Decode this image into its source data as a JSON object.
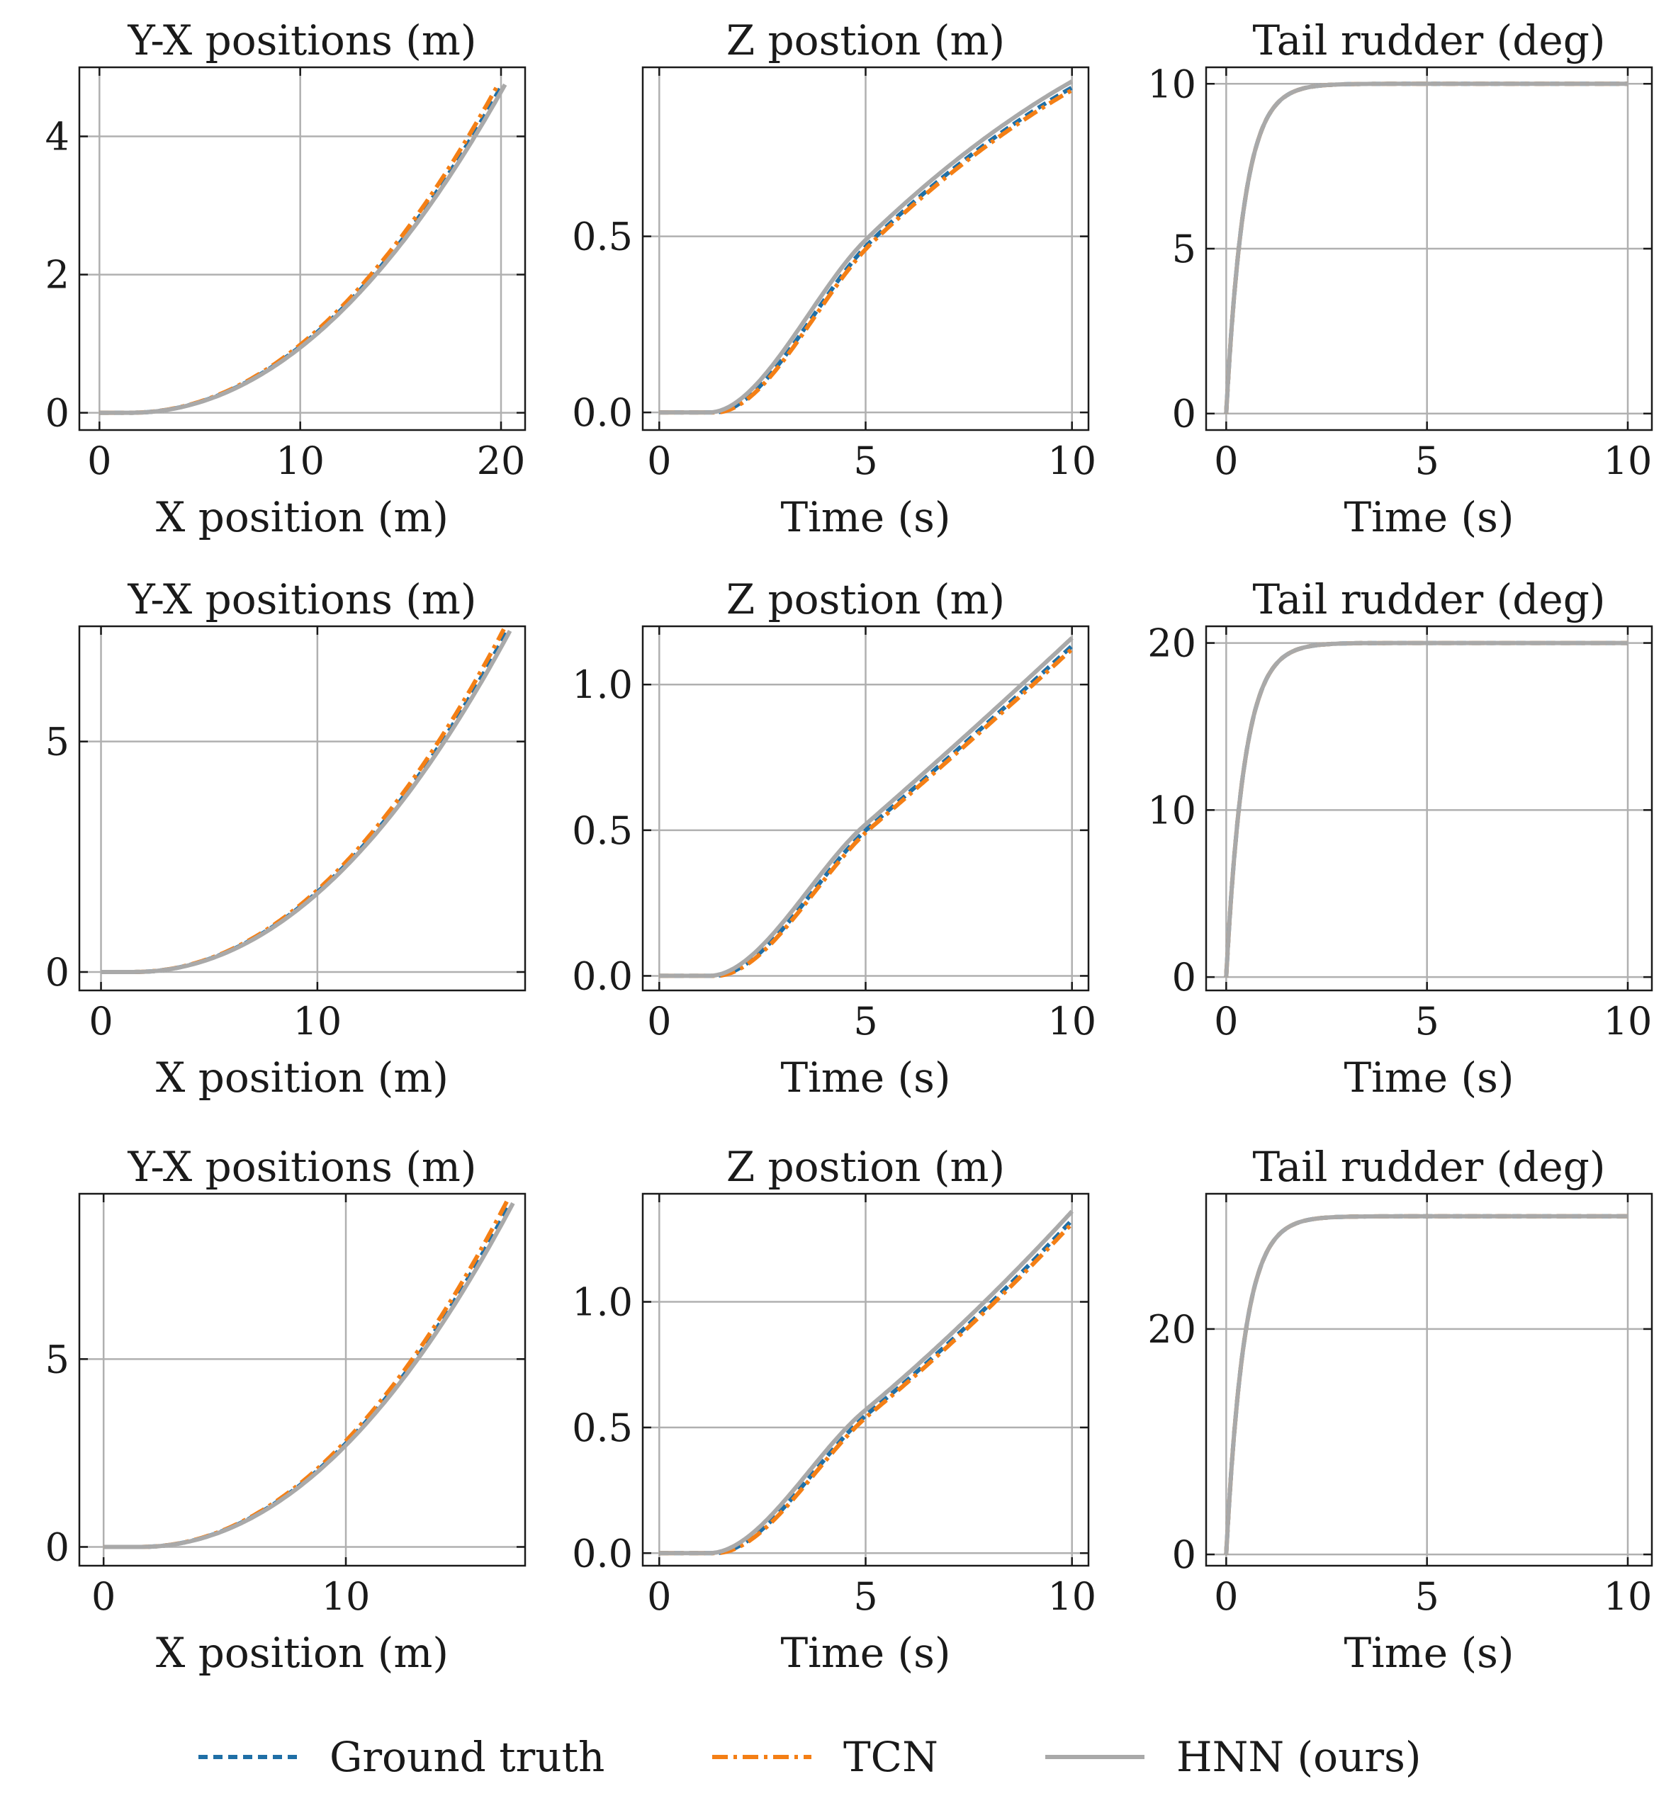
{
  "legend": {
    "entries": [
      {
        "name": "Ground truth",
        "color": "#1f6fa6",
        "style": "dashed"
      },
      {
        "name": "TCN",
        "color": "#f47f15",
        "style": "dashdot"
      },
      {
        "name": "HNN (ours)",
        "color": "#a9a9a9",
        "style": "solid"
      }
    ]
  },
  "chart_data": [
    {
      "id": "r1c1",
      "type": "line",
      "title": "Y-X positions (m)",
      "xlabel": "X position (m)",
      "ylabel": "",
      "xlim": [
        -1,
        21.2
      ],
      "ylim": [
        -0.25,
        5.0
      ],
      "xticks": [
        0,
        10,
        20
      ],
      "xticklabels": [
        "0",
        "10",
        "20"
      ],
      "yticks": [
        0,
        2,
        4
      ],
      "yticklabels": [
        "0",
        "2",
        "4"
      ],
      "curve": "parabola",
      "x_max": 20.2,
      "y_end": 4.75
    },
    {
      "id": "r1c2",
      "type": "line",
      "title": "Z postion (m)",
      "xlabel": "Time (s)",
      "ylabel": "",
      "xlim": [
        -0.4,
        10.4
      ],
      "ylim": [
        -0.05,
        0.98
      ],
      "xticks": [
        0,
        5,
        10
      ],
      "xticklabels": [
        "0",
        "5",
        "10"
      ],
      "yticks": [
        0.0,
        0.5
      ],
      "yticklabels": [
        "0.0",
        "0.5"
      ],
      "curve": "z",
      "t_max": 10,
      "z_mid": 0.49,
      "z_end": 0.94
    },
    {
      "id": "r1c3",
      "type": "line",
      "title": "Tail rudder (deg)",
      "xlabel": "Time (s)",
      "ylabel": "",
      "xlim": [
        -0.5,
        10.6
      ],
      "ylim": [
        -0.5,
        10.5
      ],
      "xticks": [
        0,
        5,
        10
      ],
      "xticklabels": [
        "0",
        "5",
        "10"
      ],
      "yticks": [
        0,
        5,
        10
      ],
      "yticklabels": [
        "0",
        "5",
        "10"
      ],
      "curve": "rudder",
      "t_max": 10,
      "target": 10
    },
    {
      "id": "r2c1",
      "type": "line",
      "title": "Y-X positions (m)",
      "xlabel": "X position (m)",
      "ylabel": "",
      "xlim": [
        -1,
        19.6
      ],
      "ylim": [
        -0.4,
        7.5
      ],
      "xticks": [
        0,
        10
      ],
      "xticklabels": [
        "0",
        "10"
      ],
      "yticks": [
        0,
        5
      ],
      "yticklabels": [
        "0",
        "5"
      ],
      "curve": "parabola",
      "x_max": 18.9,
      "y_end": 7.4
    },
    {
      "id": "r2c2",
      "type": "line",
      "title": "Z postion (m)",
      "xlabel": "Time (s)",
      "ylabel": "",
      "xlim": [
        -0.4,
        10.4
      ],
      "ylim": [
        -0.05,
        1.2
      ],
      "xticks": [
        0,
        5,
        10
      ],
      "xticklabels": [
        "0",
        "5",
        "10"
      ],
      "yticks": [
        0.0,
        0.5,
        1.0
      ],
      "yticklabels": [
        "0.0",
        "0.5",
        "1.0"
      ],
      "curve": "z",
      "t_max": 10,
      "z_mid": 0.52,
      "z_end": 1.16
    },
    {
      "id": "r2c3",
      "type": "line",
      "title": "Tail rudder (deg)",
      "xlabel": "Time (s)",
      "ylabel": "",
      "xlim": [
        -0.5,
        10.6
      ],
      "ylim": [
        -0.8,
        21.0
      ],
      "xticks": [
        0,
        5,
        10
      ],
      "xticklabels": [
        "0",
        "5",
        "10"
      ],
      "yticks": [
        0,
        10,
        20
      ],
      "yticklabels": [
        "0",
        "10",
        "20"
      ],
      "curve": "rudder",
      "t_max": 10,
      "target": 20
    },
    {
      "id": "r3c1",
      "type": "line",
      "title": "Y-X positions (m)",
      "xlabel": "X position (m)",
      "ylabel": "",
      "xlim": [
        -1,
        17.4
      ],
      "ylim": [
        -0.5,
        9.4
      ],
      "xticks": [
        0,
        10
      ],
      "xticklabels": [
        "0",
        "10"
      ],
      "yticks": [
        0,
        5
      ],
      "yticklabels": [
        "0",
        "5"
      ],
      "curve": "parabola",
      "x_max": 16.9,
      "y_end": 9.15
    },
    {
      "id": "r3c2",
      "type": "line",
      "title": "Z postion (m)",
      "xlabel": "Time (s)",
      "ylabel": "",
      "xlim": [
        -0.4,
        10.4
      ],
      "ylim": [
        -0.05,
        1.43
      ],
      "xticks": [
        0,
        5,
        10
      ],
      "xticklabels": [
        "0",
        "5",
        "10"
      ],
      "yticks": [
        0.0,
        0.5,
        1.0
      ],
      "yticklabels": [
        "0.0",
        "0.5",
        "1.0"
      ],
      "curve": "z",
      "t_max": 10,
      "z_mid": 0.57,
      "z_end": 1.36
    },
    {
      "id": "r3c3",
      "type": "line",
      "title": "Tail rudder (deg)",
      "xlabel": "Time (s)",
      "ylabel": "",
      "xlim": [
        -0.5,
        10.6
      ],
      "ylim": [
        -1.0,
        32.0
      ],
      "xticks": [
        0,
        5,
        10
      ],
      "xticklabels": [
        "0",
        "5",
        "10"
      ],
      "yticks": [
        0,
        20
      ],
      "yticklabels": [
        "0",
        "20"
      ],
      "curve": "rudder",
      "t_max": 10,
      "target": 30
    }
  ]
}
